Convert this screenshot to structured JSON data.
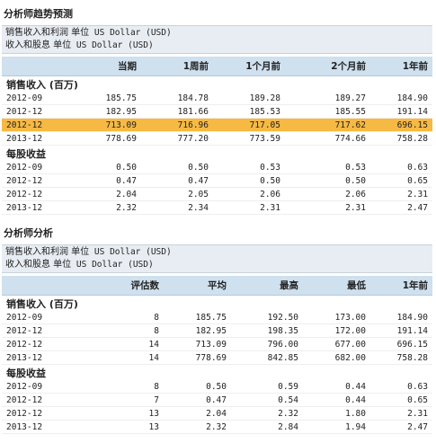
{
  "section1": {
    "title": "分析师趋势预测",
    "unit_line1_cn": "销售收入和利润 单位",
    "unit_line1_en": "US Dollar (USD)",
    "unit_line2_cn": "收入和股息 单位",
    "unit_line2_en": "US Dollar (USD)",
    "columns": [
      "",
      "当期",
      "1周前",
      "1个月前",
      "2个月前",
      "1年前"
    ],
    "groups": [
      {
        "label": "销售收入 (百万)",
        "rows": [
          {
            "period": "2012-09",
            "values": [
              "185.75",
              "184.78",
              "189.28",
              "189.27",
              "184.90"
            ],
            "highlight": false
          },
          {
            "period": "2012-12",
            "values": [
              "182.95",
              "181.66",
              "185.53",
              "185.55",
              "191.14"
            ],
            "highlight": false
          },
          {
            "period": "2012-12",
            "values": [
              "713.09",
              "716.96",
              "717.05",
              "717.62",
              "696.15"
            ],
            "highlight": true
          },
          {
            "period": "2013-12",
            "values": [
              "778.69",
              "777.20",
              "773.59",
              "774.66",
              "758.28"
            ],
            "highlight": false
          }
        ]
      },
      {
        "label": "每股收益",
        "rows": [
          {
            "period": "2012-09",
            "values": [
              "0.50",
              "0.50",
              "0.53",
              "0.53",
              "0.63"
            ],
            "highlight": false
          },
          {
            "period": "2012-12",
            "values": [
              "0.47",
              "0.47",
              "0.50",
              "0.50",
              "0.65"
            ],
            "highlight": false
          },
          {
            "period": "2012-12",
            "values": [
              "2.04",
              "2.05",
              "2.06",
              "2.06",
              "2.31"
            ],
            "highlight": false
          },
          {
            "period": "2013-12",
            "values": [
              "2.32",
              "2.34",
              "2.31",
              "2.31",
              "2.47"
            ],
            "highlight": false
          }
        ]
      }
    ]
  },
  "section2": {
    "title": "分析师分析",
    "unit_line1_cn": "销售收入和利润 单位",
    "unit_line1_en": "US Dollar (USD)",
    "unit_line2_cn": "收入和股息 单位",
    "unit_line2_en": "US Dollar (USD)",
    "columns": [
      "",
      "评估数",
      "平均",
      "最高",
      "最低",
      "1年前"
    ],
    "groups": [
      {
        "label": "销售收入 (百万)",
        "rows": [
          {
            "period": "2012-09",
            "values": [
              "8",
              "185.75",
              "192.50",
              "173.00",
              "184.90"
            ],
            "highlight": false
          },
          {
            "period": "2012-12",
            "values": [
              "8",
              "182.95",
              "198.35",
              "172.00",
              "191.14"
            ],
            "highlight": false
          },
          {
            "period": "2012-12",
            "values": [
              "14",
              "713.09",
              "796.00",
              "677.00",
              "696.15"
            ],
            "highlight": false
          },
          {
            "period": "2013-12",
            "values": [
              "14",
              "778.69",
              "842.85",
              "682.00",
              "758.28"
            ],
            "highlight": false
          }
        ]
      },
      {
        "label": "每股收益",
        "rows": [
          {
            "period": "2012-09",
            "values": [
              "8",
              "0.50",
              "0.59",
              "0.44",
              "0.63"
            ],
            "highlight": false
          },
          {
            "period": "2012-12",
            "values": [
              "7",
              "0.47",
              "0.54",
              "0.44",
              "0.65"
            ],
            "highlight": false
          },
          {
            "period": "2012-12",
            "values": [
              "13",
              "2.04",
              "2.32",
              "1.80",
              "2.31"
            ],
            "highlight": false
          },
          {
            "period": "2013-12",
            "values": [
              "13",
              "2.32",
              "2.84",
              "1.94",
              "2.47"
            ],
            "highlight": false
          }
        ]
      }
    ]
  },
  "colors": {
    "header_bg": "#cfe0ee",
    "unit_bg": "#e8edf3",
    "highlight": "#f6b943"
  }
}
